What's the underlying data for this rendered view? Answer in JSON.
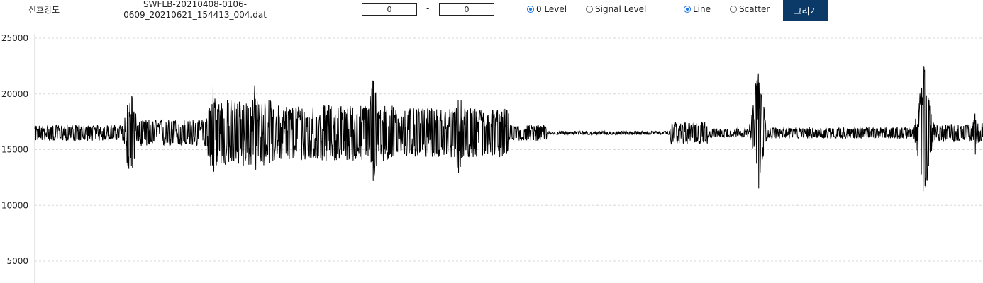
{
  "toolbar": {
    "field_label": "신호강도",
    "filename_line1": "SWFLB-20210408-0106-",
    "filename_line2": "0609_20210621_154413_004.dat",
    "range_from": "0",
    "range_separator": "-",
    "range_to": "0",
    "level_options": [
      {
        "label": "0 Level",
        "selected": true
      },
      {
        "label": "Signal Level",
        "selected": false
      }
    ],
    "style_options": [
      {
        "label": "Line",
        "selected": true
      },
      {
        "label": "Scatter",
        "selected": false
      }
    ],
    "draw_button": "그리기",
    "accent_color": "#0b3a68"
  },
  "chart_data": {
    "type": "line",
    "series": [
      {
        "color": "#000000",
        "baseline": 16500,
        "segments": [
          {
            "from": 0.0,
            "to": 0.1,
            "amp": 700
          },
          {
            "from": 0.1,
            "to": 0.095,
            "amp": 700
          },
          {
            "from": 0.095,
            "to": 0.19,
            "amp": 1200
          },
          {
            "from": 0.19,
            "to": 0.25,
            "amp": 3000
          },
          {
            "from": 0.25,
            "to": 0.38,
            "amp": 2500
          },
          {
            "from": 0.38,
            "to": 0.5,
            "amp": 2200
          },
          {
            "from": 0.5,
            "to": 0.54,
            "amp": 700
          },
          {
            "from": 0.54,
            "to": 0.67,
            "amp": 150
          },
          {
            "from": 0.67,
            "to": 0.71,
            "amp": 1000
          },
          {
            "from": 0.71,
            "to": 0.765,
            "amp": 400
          },
          {
            "from": 0.765,
            "to": 0.84,
            "amp": 500
          },
          {
            "from": 0.84,
            "to": 0.93,
            "amp": 500
          },
          {
            "from": 0.93,
            "to": 0.99,
            "amp": 800
          },
          {
            "from": 0.99,
            "to": 1.0,
            "amp": 900
          }
        ],
        "bursts": [
          {
            "at": 0.101,
            "width": 0.012,
            "max": 20900,
            "min": 11800
          },
          {
            "at": 0.188,
            "width": 0.014,
            "max": 21100,
            "min": 12300
          },
          {
            "at": 0.232,
            "width": 0.006,
            "max": 21000,
            "min": 11300
          },
          {
            "at": 0.357,
            "width": 0.015,
            "max": 21900,
            "min": 11800
          },
          {
            "at": 0.447,
            "width": 0.012,
            "max": 20800,
            "min": 12300
          },
          {
            "at": 0.763,
            "width": 0.012,
            "max": 23100,
            "min": 10500
          },
          {
            "at": 0.938,
            "width": 0.014,
            "max": 23000,
            "min": 10200
          },
          {
            "at": 0.992,
            "width": 0.006,
            "max": 18500,
            "min": 14300
          }
        ]
      }
    ],
    "yticks": [
      "5000",
      "10000",
      "15000",
      "20000",
      "25000"
    ],
    "ylim": [
      3800,
      25000
    ],
    "grid": true
  }
}
